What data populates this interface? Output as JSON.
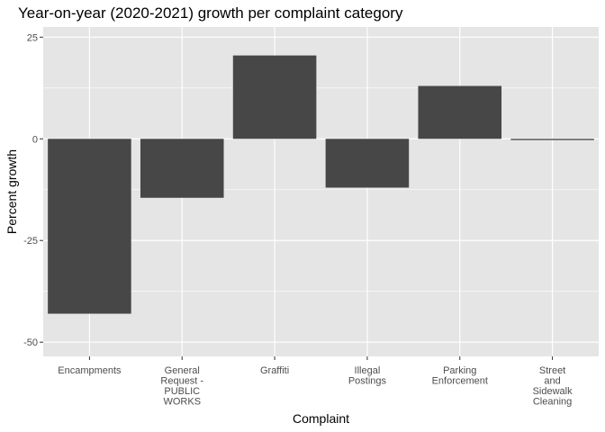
{
  "chart_data": {
    "type": "bar",
    "title": "Year-on-year (2020-2021) growth per complaint category",
    "xlabel": "Complaint",
    "ylabel": "Percent growth",
    "categories": [
      [
        "Encampments"
      ],
      [
        "General",
        "Request -",
        "PUBLIC",
        "WORKS"
      ],
      [
        "Graffiti"
      ],
      [
        "Illegal",
        "Postings"
      ],
      [
        "Parking",
        "Enforcement"
      ],
      [
        "Street",
        "and",
        "Sidewalk",
        "Cleaning"
      ]
    ],
    "values": [
      -43,
      -14.5,
      20.5,
      -12,
      13,
      -0.3
    ],
    "ylim": [
      -53.5,
      27.5
    ],
    "yticks": [
      25,
      0,
      -25,
      -50
    ],
    "ytick_labels": [
      "25",
      "0",
      "-25",
      "-50"
    ],
    "grid": true,
    "panel_color": "#e5e5e5",
    "bar_color": "#474747",
    "grid_color": "#ffffff"
  }
}
